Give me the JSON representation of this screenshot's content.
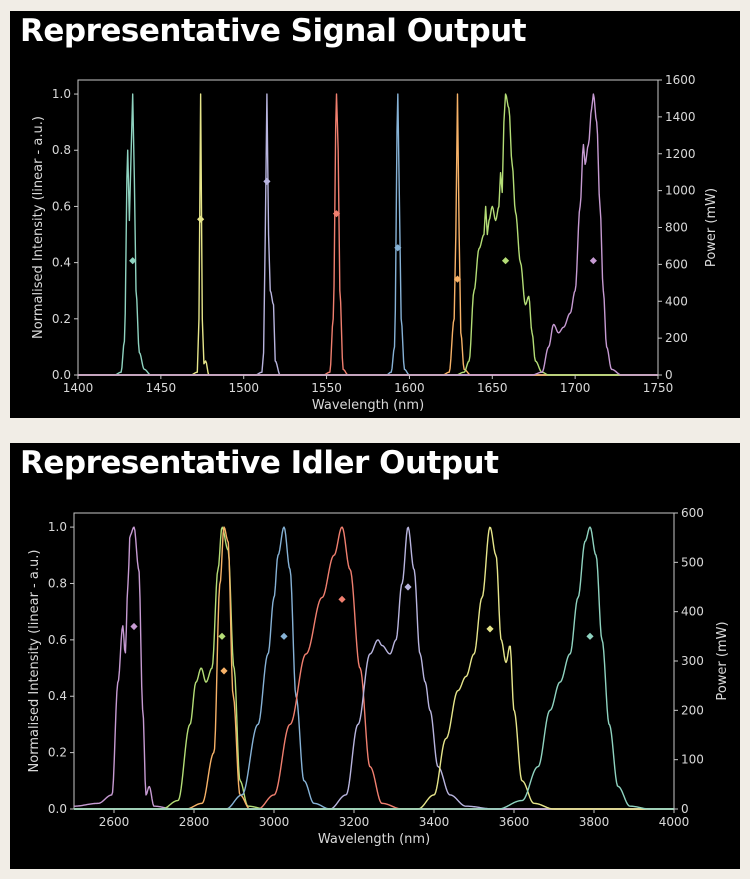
{
  "chart_data": [
    {
      "type": "line",
      "title": "Representative Signal Output",
      "xlabel": "Wavelength (nm)",
      "ylabel": "Normalised Intensity (linear - a.u.)",
      "y2label": "Power (mW)",
      "xlim": [
        1400,
        1750
      ],
      "ylim": [
        0,
        1.05
      ],
      "y2lim": [
        0,
        1600
      ],
      "xticks": [
        "1400",
        "1450",
        "1500",
        "1550",
        "1600",
        "1650",
        "1700",
        "1750"
      ],
      "yticks": [
        "0.0",
        "0.2",
        "0.4",
        "0.6",
        "0.8",
        "1.0"
      ],
      "y2ticks": [
        "0",
        "200",
        "400",
        "600",
        "800",
        "1000",
        "1200",
        "1400",
        "1600"
      ],
      "grid": false,
      "series": [
        {
          "color": "#8fd3c0",
          "power_mW": 620,
          "shape": [
            [
              1422,
              0
            ],
            [
              1426,
              0.01
            ],
            [
              1428,
              0.12
            ],
            [
              1430,
              0.8
            ],
            [
              1431,
              0.55
            ],
            [
              1432,
              0.78
            ],
            [
              1433,
              1.0
            ],
            [
              1434,
              0.7
            ],
            [
              1435,
              0.3
            ],
            [
              1437,
              0.08
            ],
            [
              1440,
              0.02
            ],
            [
              1444,
              0
            ]
          ]
        },
        {
          "color": "#e6e58a",
          "power_mW": 845,
          "shape": [
            [
              1468,
              0
            ],
            [
              1472,
              0.01
            ],
            [
              1473,
              0.2
            ],
            [
              1474,
              1.0
            ],
            [
              1475,
              0.2
            ],
            [
              1476,
              0.04
            ],
            [
              1477,
              0.05
            ],
            [
              1479,
              0
            ]
          ]
        },
        {
          "color": "#b8b4de",
          "power_mW": 1050,
          "shape": [
            [
              1507,
              0
            ],
            [
              1511,
              0.01
            ],
            [
              1512,
              0.08
            ],
            [
              1513,
              0.5
            ],
            [
              1514,
              1.0
            ],
            [
              1515,
              0.5
            ],
            [
              1516,
              0.3
            ],
            [
              1518,
              0.25
            ],
            [
              1519,
              0.05
            ],
            [
              1522,
              0
            ]
          ]
        },
        {
          "color": "#f07f6f",
          "power_mW": 875,
          "shape": [
            [
              1548,
              0
            ],
            [
              1552,
              0.01
            ],
            [
              1554,
              0.2
            ],
            [
              1556,
              1.0
            ],
            [
              1557,
              0.8
            ],
            [
              1558,
              0.3
            ],
            [
              1560,
              0.02
            ],
            [
              1563,
              0
            ]
          ]
        },
        {
          "color": "#86b2d6",
          "power_mW": 690,
          "shape": [
            [
              1586,
              0
            ],
            [
              1589,
              0.01
            ],
            [
              1591,
              0.1
            ],
            [
              1593,
              1.0
            ],
            [
              1594,
              0.6
            ],
            [
              1595,
              0.2
            ],
            [
              1597,
              0.02
            ],
            [
              1600,
              0
            ]
          ]
        },
        {
          "color": "#f7b268",
          "power_mW": 520,
          "shape": [
            [
              1620,
              0
            ],
            [
              1624,
              0.01
            ],
            [
              1627,
              0.2
            ],
            [
              1628,
              0.5
            ],
            [
              1629,
              1.0
            ],
            [
              1630,
              0.5
            ],
            [
              1631,
              0.15
            ],
            [
              1633,
              0.02
            ],
            [
              1637,
              0
            ]
          ]
        },
        {
          "color": "#b4dd76",
          "power_mW": 620,
          "shape": [
            [
              1628,
              0
            ],
            [
              1633,
              0.01
            ],
            [
              1636,
              0.05
            ],
            [
              1639,
              0.3
            ],
            [
              1642,
              0.45
            ],
            [
              1645,
              0.5
            ],
            [
              1646,
              0.6
            ],
            [
              1647,
              0.5
            ],
            [
              1648,
              0.55
            ],
            [
              1650,
              0.6
            ],
            [
              1652,
              0.55
            ],
            [
              1654,
              0.6
            ],
            [
              1655,
              0.72
            ],
            [
              1656,
              0.65
            ],
            [
              1657,
              0.9
            ],
            [
              1658,
              1.0
            ],
            [
              1660,
              0.95
            ],
            [
              1662,
              0.75
            ],
            [
              1664,
              0.58
            ],
            [
              1667,
              0.4
            ],
            [
              1670,
              0.25
            ],
            [
              1672,
              0.28
            ],
            [
              1674,
              0.15
            ],
            [
              1676,
              0.05
            ],
            [
              1680,
              0.01
            ],
            [
              1684,
              0
            ]
          ]
        },
        {
          "color": "#c69ad2",
          "power_mW": 620,
          "shape": [
            [
              1674,
              0
            ],
            [
              1680,
              0.01
            ],
            [
              1684,
              0.1
            ],
            [
              1687,
              0.18
            ],
            [
              1690,
              0.15
            ],
            [
              1693,
              0.17
            ],
            [
              1697,
              0.22
            ],
            [
              1700,
              0.3
            ],
            [
              1703,
              0.6
            ],
            [
              1705,
              0.82
            ],
            [
              1706,
              0.75
            ],
            [
              1708,
              0.82
            ],
            [
              1710,
              0.95
            ],
            [
              1711,
              1.0
            ],
            [
              1713,
              0.9
            ],
            [
              1715,
              0.6
            ],
            [
              1717,
              0.3
            ],
            [
              1719,
              0.1
            ],
            [
              1722,
              0.02
            ],
            [
              1728,
              0
            ]
          ]
        }
      ]
    },
    {
      "type": "line",
      "title": "Representative Idler Output",
      "xlabel": "Wavelength (nm)",
      "ylabel": "Normalised Intensity (linear - a.u.)",
      "y2label": "Power (mW)",
      "xlim": [
        2500,
        4000
      ],
      "ylim": [
        0,
        1.05
      ],
      "y2lim": [
        0,
        600
      ],
      "xticks": [
        "2600",
        "2800",
        "3000",
        "3200",
        "3400",
        "3600",
        "3800",
        "4000"
      ],
      "yticks": [
        "0.0",
        "0.2",
        "0.4",
        "0.6",
        "0.8",
        "1.0"
      ],
      "y2ticks": [
        "0",
        "100",
        "200",
        "300",
        "400",
        "500",
        "600"
      ],
      "grid": false,
      "series": [
        {
          "color": "#c69ad2",
          "power_mW": 370,
          "shape": [
            [
              2500,
              0.01
            ],
            [
              2560,
              0.02
            ],
            [
              2595,
              0.05
            ],
            [
              2610,
              0.45
            ],
            [
              2622,
              0.65
            ],
            [
              2628,
              0.55
            ],
            [
              2635,
              0.8
            ],
            [
              2640,
              0.97
            ],
            [
              2650,
              1.0
            ],
            [
              2662,
              0.85
            ],
            [
              2672,
              0.35
            ],
            [
              2680,
              0.05
            ],
            [
              2688,
              0.08
            ],
            [
              2700,
              0.01
            ],
            [
              2750,
              0
            ],
            [
              4000,
              0
            ]
          ]
        },
        {
          "color": "#b4dd76",
          "power_mW": 350,
          "shape": [
            [
              2500,
              0
            ],
            [
              2720,
              0
            ],
            [
              2760,
              0.03
            ],
            [
              2790,
              0.3
            ],
            [
              2805,
              0.45
            ],
            [
              2818,
              0.5
            ],
            [
              2830,
              0.45
            ],
            [
              2845,
              0.5
            ],
            [
              2860,
              0.85
            ],
            [
              2870,
              1.0
            ],
            [
              2885,
              0.92
            ],
            [
              2900,
              0.5
            ],
            [
              2915,
              0.1
            ],
            [
              2935,
              0.01
            ],
            [
              2980,
              0
            ],
            [
              4000,
              0
            ]
          ]
        },
        {
          "color": "#f7b268",
          "power_mW": 280,
          "shape": [
            [
              2500,
              0
            ],
            [
              2780,
              0
            ],
            [
              2820,
              0.02
            ],
            [
              2850,
              0.2
            ],
            [
              2865,
              0.8
            ],
            [
              2875,
              1.0
            ],
            [
              2885,
              0.95
            ],
            [
              2898,
              0.4
            ],
            [
              2915,
              0.05
            ],
            [
              2940,
              0
            ],
            [
              4000,
              0
            ]
          ]
        },
        {
          "color": "#86b2d6",
          "power_mW": 350,
          "shape": [
            [
              2500,
              0
            ],
            [
              2880,
              0
            ],
            [
              2920,
              0.05
            ],
            [
              2960,
              0.3
            ],
            [
              2985,
              0.55
            ],
            [
              3000,
              0.75
            ],
            [
              3010,
              0.9
            ],
            [
              3025,
              1.0
            ],
            [
              3040,
              0.85
            ],
            [
              3055,
              0.4
            ],
            [
              3075,
              0.1
            ],
            [
              3100,
              0.02
            ],
            [
              3140,
              0
            ],
            [
              4000,
              0
            ]
          ]
        },
        {
          "color": "#f07f6f",
          "power_mW": 425,
          "shape": [
            [
              2500,
              0
            ],
            [
              2960,
              0
            ],
            [
              3000,
              0.05
            ],
            [
              3040,
              0.3
            ],
            [
              3080,
              0.55
            ],
            [
              3120,
              0.75
            ],
            [
              3150,
              0.9
            ],
            [
              3170,
              1.0
            ],
            [
              3190,
              0.85
            ],
            [
              3215,
              0.5
            ],
            [
              3240,
              0.15
            ],
            [
              3270,
              0.02
            ],
            [
              3320,
              0
            ],
            [
              4000,
              0
            ]
          ]
        },
        {
          "color": "#b8b4de",
          "power_mW": 450,
          "shape": [
            [
              2500,
              0
            ],
            [
              3140,
              0
            ],
            [
              3180,
              0.05
            ],
            [
              3210,
              0.3
            ],
            [
              3240,
              0.55
            ],
            [
              3260,
              0.6
            ],
            [
              3270,
              0.58
            ],
            [
              3290,
              0.55
            ],
            [
              3305,
              0.6
            ],
            [
              3320,
              0.8
            ],
            [
              3335,
              1.0
            ],
            [
              3350,
              0.85
            ],
            [
              3365,
              0.55
            ],
            [
              3378,
              0.45
            ],
            [
              3390,
              0.35
            ],
            [
              3410,
              0.15
            ],
            [
              3440,
              0.05
            ],
            [
              3480,
              0.01
            ],
            [
              3550,
              0
            ],
            [
              4000,
              0
            ]
          ]
        },
        {
          "color": "#e6e58a",
          "power_mW": 365,
          "shape": [
            [
              2500,
              0
            ],
            [
              3360,
              0
            ],
            [
              3400,
              0.05
            ],
            [
              3430,
              0.25
            ],
            [
              3460,
              0.42
            ],
            [
              3480,
              0.47
            ],
            [
              3500,
              0.55
            ],
            [
              3520,
              0.75
            ],
            [
              3540,
              1.0
            ],
            [
              3555,
              0.9
            ],
            [
              3568,
              0.6
            ],
            [
              3580,
              0.52
            ],
            [
              3590,
              0.58
            ],
            [
              3600,
              0.35
            ],
            [
              3620,
              0.1
            ],
            [
              3650,
              0.02
            ],
            [
              3700,
              0
            ],
            [
              4000,
              0
            ]
          ]
        },
        {
          "color": "#8fd3c0",
          "power_mW": 350,
          "shape": [
            [
              2500,
              0
            ],
            [
              3560,
              0
            ],
            [
              3620,
              0.03
            ],
            [
              3660,
              0.15
            ],
            [
              3690,
              0.35
            ],
            [
              3715,
              0.45
            ],
            [
              3740,
              0.55
            ],
            [
              3760,
              0.75
            ],
            [
              3778,
              0.95
            ],
            [
              3790,
              1.0
            ],
            [
              3805,
              0.9
            ],
            [
              3820,
              0.6
            ],
            [
              3838,
              0.3
            ],
            [
              3860,
              0.08
            ],
            [
              3890,
              0.01
            ],
            [
              3940,
              0
            ],
            [
              4000,
              0
            ]
          ]
        }
      ]
    }
  ]
}
